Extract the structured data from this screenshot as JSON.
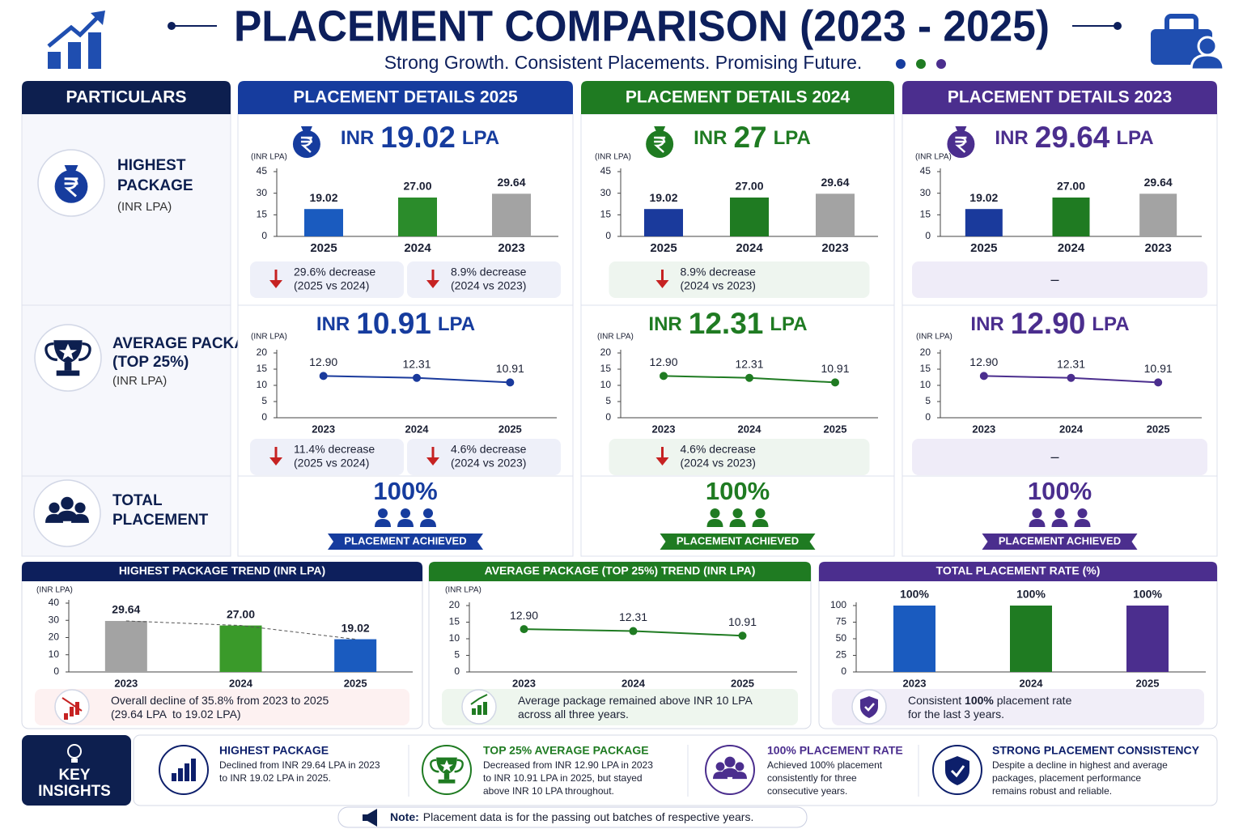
{
  "header": {
    "title": "PLACEMENT COMPARISON (2023 - 2025)",
    "subtitle": "Strong Growth. Consistent Placements. Promising Future."
  },
  "table": {
    "particulars_header": "PARTICULARS",
    "rows": [
      {
        "title_lines": [
          "HIGHEST",
          "PACKAGE"
        ],
        "unit": "(INR LPA)"
      },
      {
        "title_lines": [
          "AVERAGE PACKAGE",
          "(TOP 25%)"
        ],
        "unit": "(INR LPA)"
      },
      {
        "title_lines": [
          "TOTAL",
          "PLACEMENT"
        ]
      }
    ],
    "columns": [
      {
        "header": "PLACEMENT DETAILS 2025",
        "color": "#163c9e",
        "tint": "#eef0f9",
        "highest": {
          "currency": "INR",
          "amount": "19.02",
          "unit": "LPA"
        },
        "highest_changes": [
          {
            "change": "29.6% decrease",
            "comparison": "(2025 vs 2024)"
          },
          {
            "change": "8.9% decrease",
            "comparison": "(2024 vs 2023)"
          }
        ],
        "average": {
          "currency": "INR",
          "amount": "10.91",
          "unit": "LPA"
        },
        "average_changes": [
          {
            "change": "11.4% decrease",
            "comparison": "(2025 vs 2024)"
          },
          {
            "change": "4.6% decrease",
            "comparison": "(2024 vs 2023)"
          }
        ],
        "placement": "100%",
        "placement_label": "PLACEMENT ACHIEVED"
      },
      {
        "header": "PLACEMENT DETAILS 2024",
        "color": "#1f7b22",
        "tint": "#eef5ef",
        "highest": {
          "currency": "INR",
          "amount": "27",
          "unit": "LPA"
        },
        "highest_changes": [
          {
            "change": "8.9% decrease",
            "comparison": "(2024 vs 2023)"
          }
        ],
        "average": {
          "currency": "INR",
          "amount": "12.31",
          "unit": "LPA"
        },
        "average_changes": [
          {
            "change": "4.6% decrease",
            "comparison": "(2024 vs 2023)"
          }
        ],
        "placement": "100%",
        "placement_label": "PLACEMENT ACHIEVED"
      },
      {
        "header": "PLACEMENT DETAILS 2023",
        "color": "#4b2e8e",
        "tint": "#efecf8",
        "highest": {
          "currency": "INR",
          "amount": "29.64",
          "unit": "LPA"
        },
        "highest_note": "–",
        "average": {
          "currency": "INR",
          "amount": "12.90",
          "unit": "LPA"
        },
        "average_note": "–",
        "placement": "100%",
        "placement_label": "PLACEMENT ACHIEVED"
      }
    ]
  },
  "chart_data": [
    {
      "type": "bar",
      "y_label": "(INR LPA)",
      "categories": [
        "2025",
        "2024",
        "2023"
      ],
      "values": [
        19.02,
        27,
        29.64
      ],
      "value_labels": [
        "19.02",
        "27.00",
        "29.64"
      ],
      "colors": [
        "#1a5bbf",
        "#2b8c2b",
        "#a3a3a3"
      ],
      "ylim": [
        0,
        45
      ],
      "yticks": [
        0,
        15,
        30,
        45
      ],
      "grid": false
    },
    {
      "type": "bar",
      "y_label": "(INR LPA)",
      "categories": [
        "2025",
        "2024",
        "2023"
      ],
      "values": [
        19.02,
        27,
        29.64
      ],
      "value_labels": [
        "19.02",
        "27.00",
        "29.64"
      ],
      "colors": [
        "#1a3a9c",
        "#1f7b22",
        "#a3a3a3"
      ],
      "ylim": [
        0,
        45
      ],
      "yticks": [
        0,
        15,
        30,
        45
      ],
      "grid": false
    },
    {
      "type": "bar",
      "y_label": "(INR LPA)",
      "categories": [
        "2025",
        "2024",
        "2023"
      ],
      "values": [
        19.02,
        27,
        29.64
      ],
      "value_labels": [
        "19.02",
        "27.00",
        "29.64"
      ],
      "colors": [
        "#1a3a9c",
        "#1f7b22",
        "#a3a3a3"
      ],
      "ylim": [
        0,
        45
      ],
      "yticks": [
        0,
        15,
        30,
        45
      ],
      "grid": false
    },
    {
      "type": "line",
      "y_label": "(INR LPA)",
      "categories": [
        "2023",
        "2024",
        "2025"
      ],
      "values": [
        12.9,
        12.31,
        10.91
      ],
      "value_labels": [
        "12.90",
        "12.31",
        "10.91"
      ],
      "color": "#1a3a9c",
      "ylim": [
        0,
        20
      ],
      "yticks": [
        0,
        5,
        10,
        15,
        20
      ],
      "grid": false
    },
    {
      "type": "line",
      "y_label": "(INR LPA)",
      "categories": [
        "2023",
        "2024",
        "2025"
      ],
      "values": [
        12.9,
        12.31,
        10.91
      ],
      "value_labels": [
        "12.90",
        "12.31",
        "10.91"
      ],
      "color": "#1f7b22",
      "ylim": [
        0,
        20
      ],
      "yticks": [
        0,
        5,
        10,
        15,
        20
      ],
      "grid": false
    },
    {
      "type": "line",
      "y_label": "(INR LPA)",
      "categories": [
        "2023",
        "2024",
        "2025"
      ],
      "values": [
        12.9,
        12.31,
        10.91
      ],
      "value_labels": [
        "12.90",
        "12.31",
        "10.91"
      ],
      "color": "#4b2e8e",
      "ylim": [
        0,
        20
      ],
      "yticks": [
        0,
        5,
        10,
        15,
        20
      ],
      "grid": false
    },
    {
      "type": "bar",
      "title": "HIGHEST PACKAGE TREND (INR LPA)",
      "y_label": "(INR LPA)",
      "categories": [
        "2023",
        "2024",
        "2025"
      ],
      "values": [
        29.64,
        27,
        19.02
      ],
      "value_labels": [
        "29.64",
        "27.00",
        "19.02"
      ],
      "colors": [
        "#a3a3a3",
        "#3a9a2a",
        "#1a5bbf"
      ],
      "ylim": [
        0,
        40
      ],
      "yticks": [
        0,
        10,
        20,
        30,
        40
      ],
      "grid": false,
      "trend_line": true
    },
    {
      "type": "line",
      "title": "AVERAGE PACKAGE (TOP 25%) TREND (INR LPA)",
      "y_label": "(INR LPA)",
      "categories": [
        "2023",
        "2024",
        "2025"
      ],
      "values": [
        12.9,
        12.31,
        10.91
      ],
      "value_labels": [
        "12.90",
        "12.31",
        "10.91"
      ],
      "color": "#1f7b22",
      "ylim": [
        0,
        20
      ],
      "yticks": [
        0,
        5,
        10,
        15,
        20
      ],
      "grid": false
    },
    {
      "type": "bar",
      "title": "TOTAL PLACEMENT RATE (%)",
      "categories": [
        "2023",
        "2024",
        "2025"
      ],
      "values": [
        100,
        100,
        100
      ],
      "value_labels": [
        "100%",
        "100%",
        "100%"
      ],
      "colors": [
        "#1a5bbf",
        "#1f7b22",
        "#4b2e8e"
      ],
      "ylim": [
        0,
        100
      ],
      "yticks": [
        0,
        25,
        50,
        75,
        100
      ],
      "grid": false
    }
  ],
  "panels": [
    {
      "color": "#0d1f5c",
      "tint": "#fdf1f1",
      "note_lines": [
        [
          "Overall decline of 35.8% from 2023 to 2025"
        ],
        [
          "(29.64 LPA  to 19.02 LPA)"
        ]
      ]
    },
    {
      "color": "#1f7b22",
      "tint": "#eef6ee",
      "note_lines": [
        [
          "Average package remained above INR 10 LPA"
        ],
        [
          "across all three years."
        ]
      ]
    },
    {
      "color": "#4b2e8e",
      "tint": "#f1eef8",
      "note_lines": [
        [
          "Consistent ",
          "100%",
          " placement rate"
        ],
        [
          "for the last 3 years."
        ]
      ]
    }
  ],
  "key_insights": {
    "title_lines": [
      "KEY",
      "INSIGHTS"
    ],
    "items": [
      {
        "title": "HIGHEST PACKAGE",
        "color": "#0d1f6b",
        "lines": [
          "Declined from INR 29.64 LPA in 2023",
          "to INR 19.02 LPA in 2025."
        ]
      },
      {
        "title": "TOP 25% AVERAGE PACKAGE",
        "color": "#1f7b22",
        "lines": [
          "Decreased from INR 12.90 LPA in 2023",
          "to INR 10.91 LPA in 2025, but stayed",
          "above INR 10 LPA throughout."
        ]
      },
      {
        "title": "100% PLACEMENT RATE",
        "color": "#4b2e8e",
        "lines": [
          "Achieved 100% placement",
          "consistently for three",
          "consecutive years."
        ]
      },
      {
        "title": "STRONG PLACEMENT CONSISTENCY",
        "color": "#0d1f6b",
        "lines": [
          "Despite a decline in highest and average",
          "packages, placement performance",
          "remains robust and reliable."
        ]
      }
    ]
  },
  "note": {
    "label": "Note:",
    "text": "Placement data is for the passing out batches of respective years."
  }
}
